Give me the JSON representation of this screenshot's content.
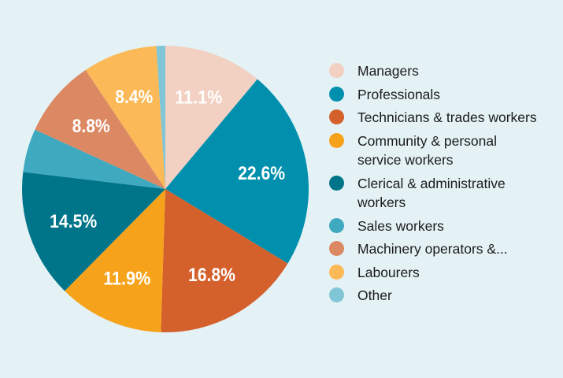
{
  "chart_data": {
    "type": "pie",
    "title": "",
    "legend_position": "right",
    "categories": [
      "Managers",
      "Professionals",
      "Technicians & trades workers",
      "Community & personal service workers",
      "Clerical & administrative workers",
      "Sales workers",
      "Machinery operators &...",
      "Labourers",
      "Other"
    ],
    "values": [
      11.1,
      22.6,
      16.8,
      11.9,
      14.5,
      4.9,
      8.8,
      8.4,
      1.0
    ],
    "labels": [
      "11.1%",
      "22.6%",
      "16.8%",
      "11.9%",
      "14.5%",
      "",
      "8.8%",
      "8.4%",
      ""
    ],
    "colors": [
      "#f2d0c2",
      "#0090ae",
      "#d4602b",
      "#f7a21b",
      "#00758a",
      "#3ea9bf",
      "#dc8862",
      "#fbb957",
      "#80c6d6"
    ],
    "background": "#e4f2f6"
  }
}
